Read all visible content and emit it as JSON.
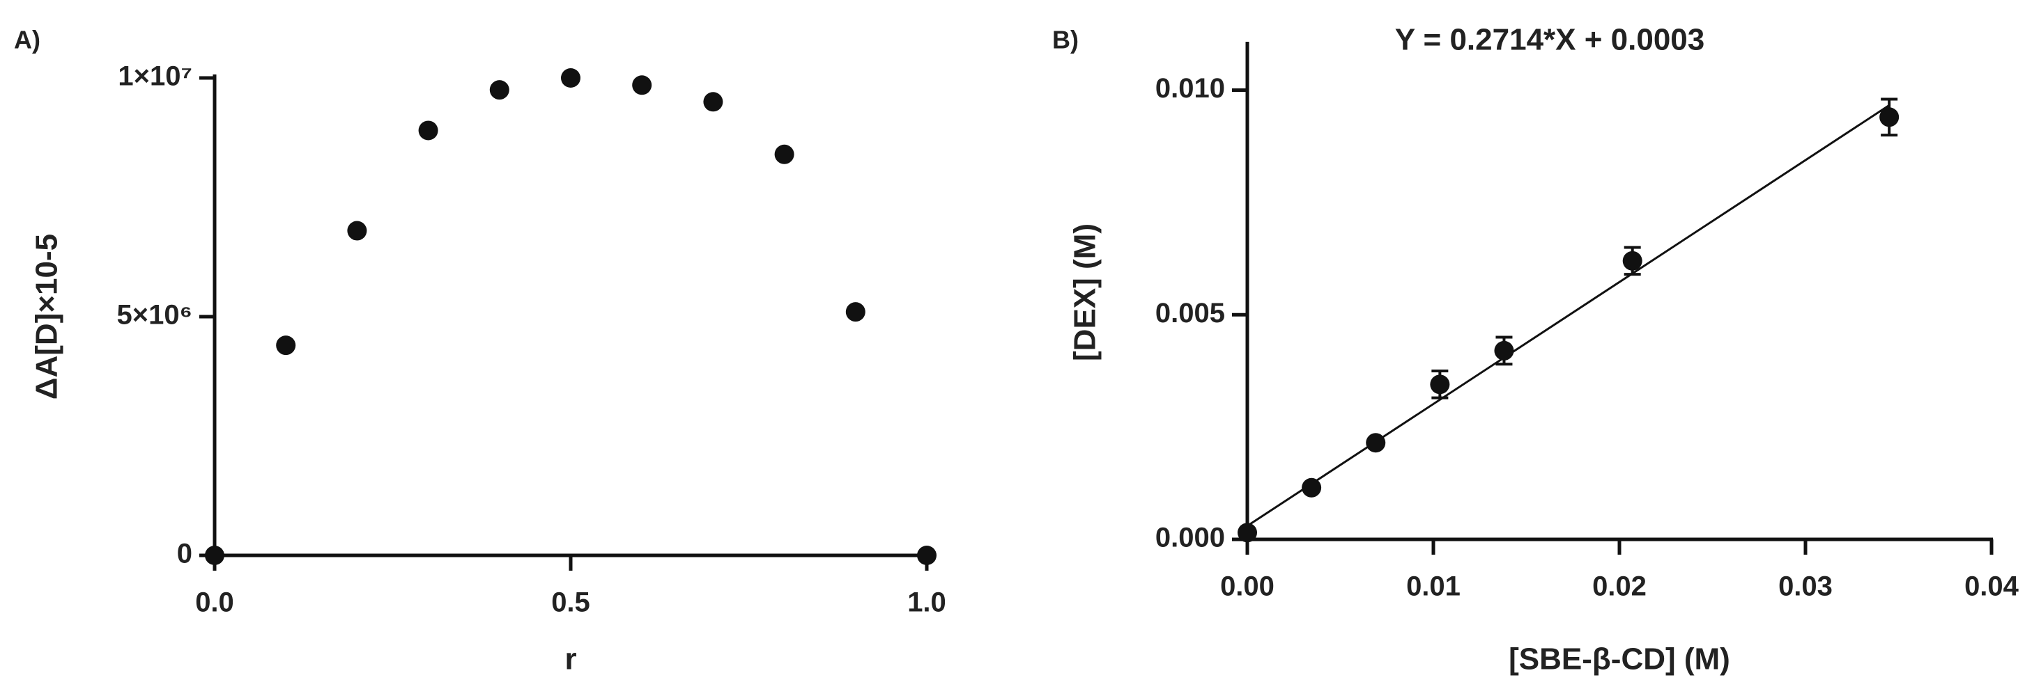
{
  "chart_data": [
    {
      "type": "scatter",
      "panel_label": "A)",
      "x_label": "r",
      "y_label": "ΔA[D]×10-5",
      "xlim": [
        0,
        1
      ],
      "xticks": [
        {
          "value": 0,
          "label": "0.0"
        },
        0.5,
        {
          "value": 1,
          "label": "1.0"
        }
      ],
      "ylim": [
        0,
        10000000
      ],
      "yticks": [
        0,
        {
          "value": 5000000,
          "label": "5×10⁶"
        },
        {
          "value": 10000000,
          "label": "1×10⁷"
        }
      ],
      "color": "#111111",
      "x": [
        0,
        0.1,
        0.2,
        0.3,
        0.4,
        0.5,
        0.6,
        0.7,
        0.8,
        0.9,
        1.0
      ],
      "values": [
        0,
        4400000,
        6800000,
        8900000,
        9750000,
        10000000,
        9850000,
        9500000,
        8400000,
        5100000,
        0
      ]
    },
    {
      "type": "scatter",
      "panel_label": "B)",
      "title": "Y = 0.2714*X + 0.0003",
      "x_label": "[SBE-β-CD] (M)",
      "y_label": "[DEX] (M)",
      "xlim": [
        0,
        0.04
      ],
      "xticks": [
        {
          "value": 0,
          "label": "0.00"
        },
        0.01,
        0.02,
        0.03,
        0.04
      ],
      "ylim": [
        0,
        0.011
      ],
      "yticks": [
        {
          "value": 0,
          "label": "0.000"
        },
        0.005,
        {
          "value": 0.01,
          "label": "0.010"
        }
      ],
      "color": "#111111",
      "x": [
        0,
        0.00345,
        0.0069,
        0.01035,
        0.0138,
        0.0207,
        0.0345
      ],
      "values": [
        0.00015,
        0.00115,
        0.00215,
        0.00345,
        0.0042,
        0.0062,
        0.0094
      ],
      "errors": [
        0,
        0,
        0,
        0.0003,
        0.0003,
        0.0003,
        0.0004
      ],
      "fit": {
        "slope": 0.2714,
        "intercept": 0.0003
      }
    }
  ]
}
